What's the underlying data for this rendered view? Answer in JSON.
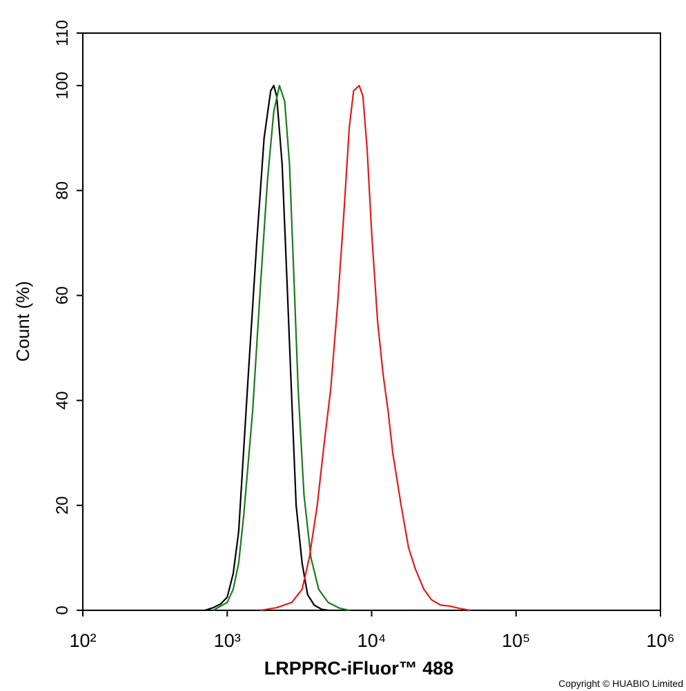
{
  "chart_data": {
    "type": "line",
    "xlabel": "LRPPRC-iFluor™ 488",
    "ylabel": "Count  (%)",
    "footnote": "Copyright © HUABIO Limited",
    "xscale": "log",
    "xlim": [
      100,
      1000000
    ],
    "xticks": [
      {
        "value": 100,
        "label": "10²"
      },
      {
        "value": 1000,
        "label": "10³"
      },
      {
        "value": 10000,
        "label": "10⁴"
      },
      {
        "value": 100000,
        "label": "10⁵"
      },
      {
        "value": 1000000,
        "label": "10⁶"
      }
    ],
    "ylim": [
      0,
      110
    ],
    "yticks": [
      0,
      20,
      40,
      60,
      80,
      100,
      110
    ],
    "series": [
      {
        "color": "#000000",
        "x": [
          700,
          800,
          900,
          1000,
          1100,
          1200,
          1400,
          1600,
          1800,
          2000,
          2100,
          2200,
          2400,
          2600,
          2800,
          3000,
          3300,
          3600,
          4000,
          4500,
          5000
        ],
        "values": [
          0,
          0.5,
          1.2,
          2.5,
          7,
          15,
          45,
          70,
          90,
          99,
          100,
          98,
          85,
          62,
          40,
          20,
          9,
          3,
          1,
          0.2,
          0
        ]
      },
      {
        "color": "#1a7a1a",
        "x": [
          800,
          1000,
          1100,
          1200,
          1300,
          1500,
          1700,
          1900,
          2100,
          2300,
          2500,
          2700,
          2900,
          3100,
          3400,
          3800,
          4300,
          5000,
          6000,
          7000
        ],
        "values": [
          0,
          1.5,
          4,
          9,
          18,
          38,
          62,
          82,
          95,
          100,
          97,
          85,
          63,
          42,
          22,
          10,
          4,
          1.5,
          0.4,
          0
        ]
      },
      {
        "color": "#e31a1a",
        "x": [
          1700,
          2200,
          2800,
          3300,
          3700,
          4200,
          4700,
          5200,
          5800,
          6400,
          7000,
          7500,
          8200,
          8700,
          9300,
          10000,
          11000,
          12000,
          13000,
          14000,
          16000,
          18000,
          20000,
          23000,
          26000,
          30000,
          35000,
          40000,
          48000
        ],
        "values": [
          0,
          0.5,
          1.5,
          4,
          10,
          20,
          32,
          42,
          58,
          75,
          92,
          99,
          100,
          98,
          88,
          72,
          55,
          45,
          38,
          30,
          20,
          12,
          8,
          4,
          2,
          1,
          0.8,
          0.4,
          0
        ]
      }
    ]
  }
}
